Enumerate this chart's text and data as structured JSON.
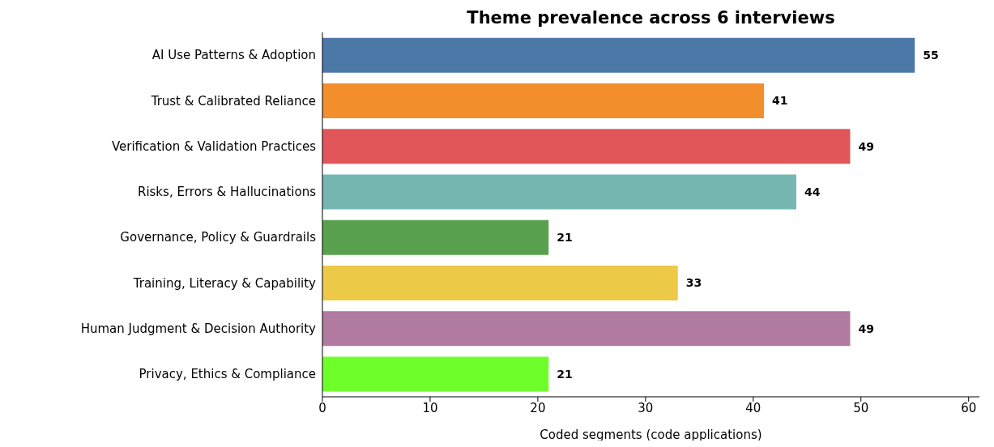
{
  "chart_data": {
    "type": "bar",
    "orientation": "horizontal",
    "title": "Theme prevalence across 6 interviews",
    "xlabel": "Coded segments (code applications)",
    "categories": [
      "AI Use Patterns & Adoption",
      "Trust & Calibrated Reliance",
      "Verification & Validation Practices",
      "Risks, Errors & Hallucinations",
      "Governance, Policy & Guardrails",
      "Training, Literacy & Capability",
      "Human Judgment & Decision Authority",
      "Privacy, Ethics & Compliance"
    ],
    "values": [
      55,
      41,
      49,
      44,
      21,
      33,
      49,
      21
    ],
    "colors": [
      "#4c78a8",
      "#f28e2b",
      "#e15759",
      "#76b7b2",
      "#59a14f",
      "#edc948",
      "#b07aa1",
      "#6eff2a"
    ],
    "xlim": [
      0,
      61
    ],
    "xticks": [
      0,
      10,
      20,
      30,
      40,
      50,
      60
    ],
    "data_labels": true
  }
}
